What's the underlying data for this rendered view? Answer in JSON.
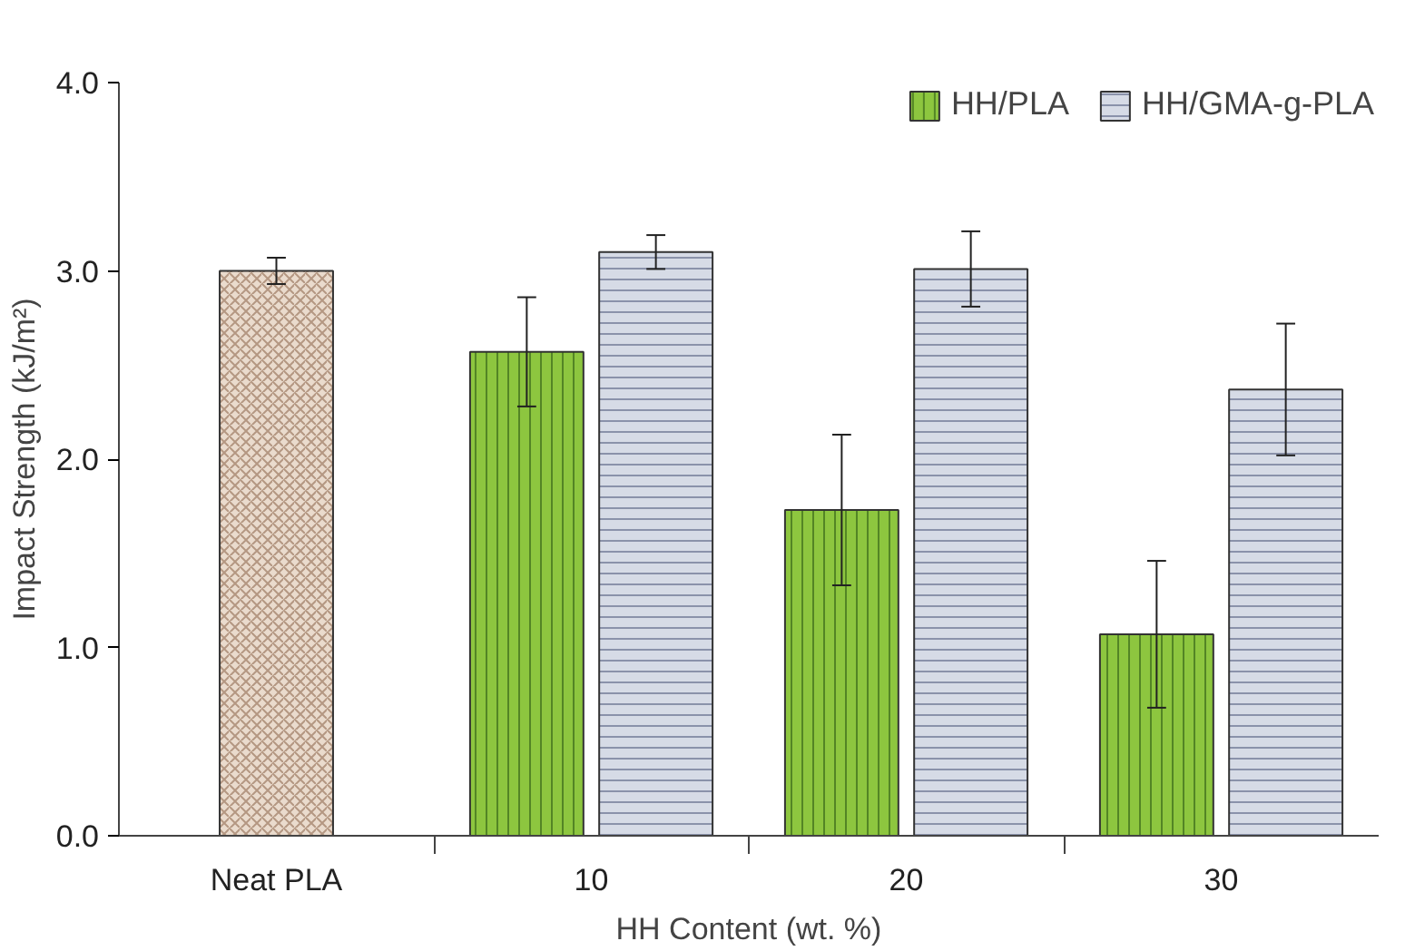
{
  "chart_data": {
    "type": "bar",
    "xlabel": "HH Content (wt. %)",
    "ylabel": "Impact Strength (kJ/m²)",
    "categories": [
      "Neat PLA",
      "10",
      "20",
      "30"
    ],
    "series": [
      {
        "color": "#eadbcd",
        "values": [
          3.0,
          null,
          null,
          null
        ],
        "errors": [
          0.07,
          null,
          null,
          null
        ]
      },
      {
        "name": "HH/PLA",
        "color": "#8dc63f",
        "values": [
          null,
          2.57,
          1.73,
          1.07
        ],
        "errors": [
          null,
          0.29,
          0.4,
          0.39
        ]
      },
      {
        "name": "HH/GMA-g-PLA",
        "color": "#d6dbe6",
        "values": [
          null,
          3.1,
          3.01,
          2.37
        ],
        "errors": [
          null,
          0.09,
          0.2,
          0.35
        ]
      }
    ],
    "ylim": [
      0,
      4
    ],
    "yticks": [
      {
        "value": 0,
        "label": "0.0"
      },
      {
        "value": 1,
        "label": "1.0"
      },
      {
        "value": 2,
        "label": "2.0"
      },
      {
        "value": 3,
        "label": "3.0"
      },
      {
        "value": 4,
        "label": "4.0"
      }
    ],
    "grid": false,
    "legend": "top right"
  }
}
